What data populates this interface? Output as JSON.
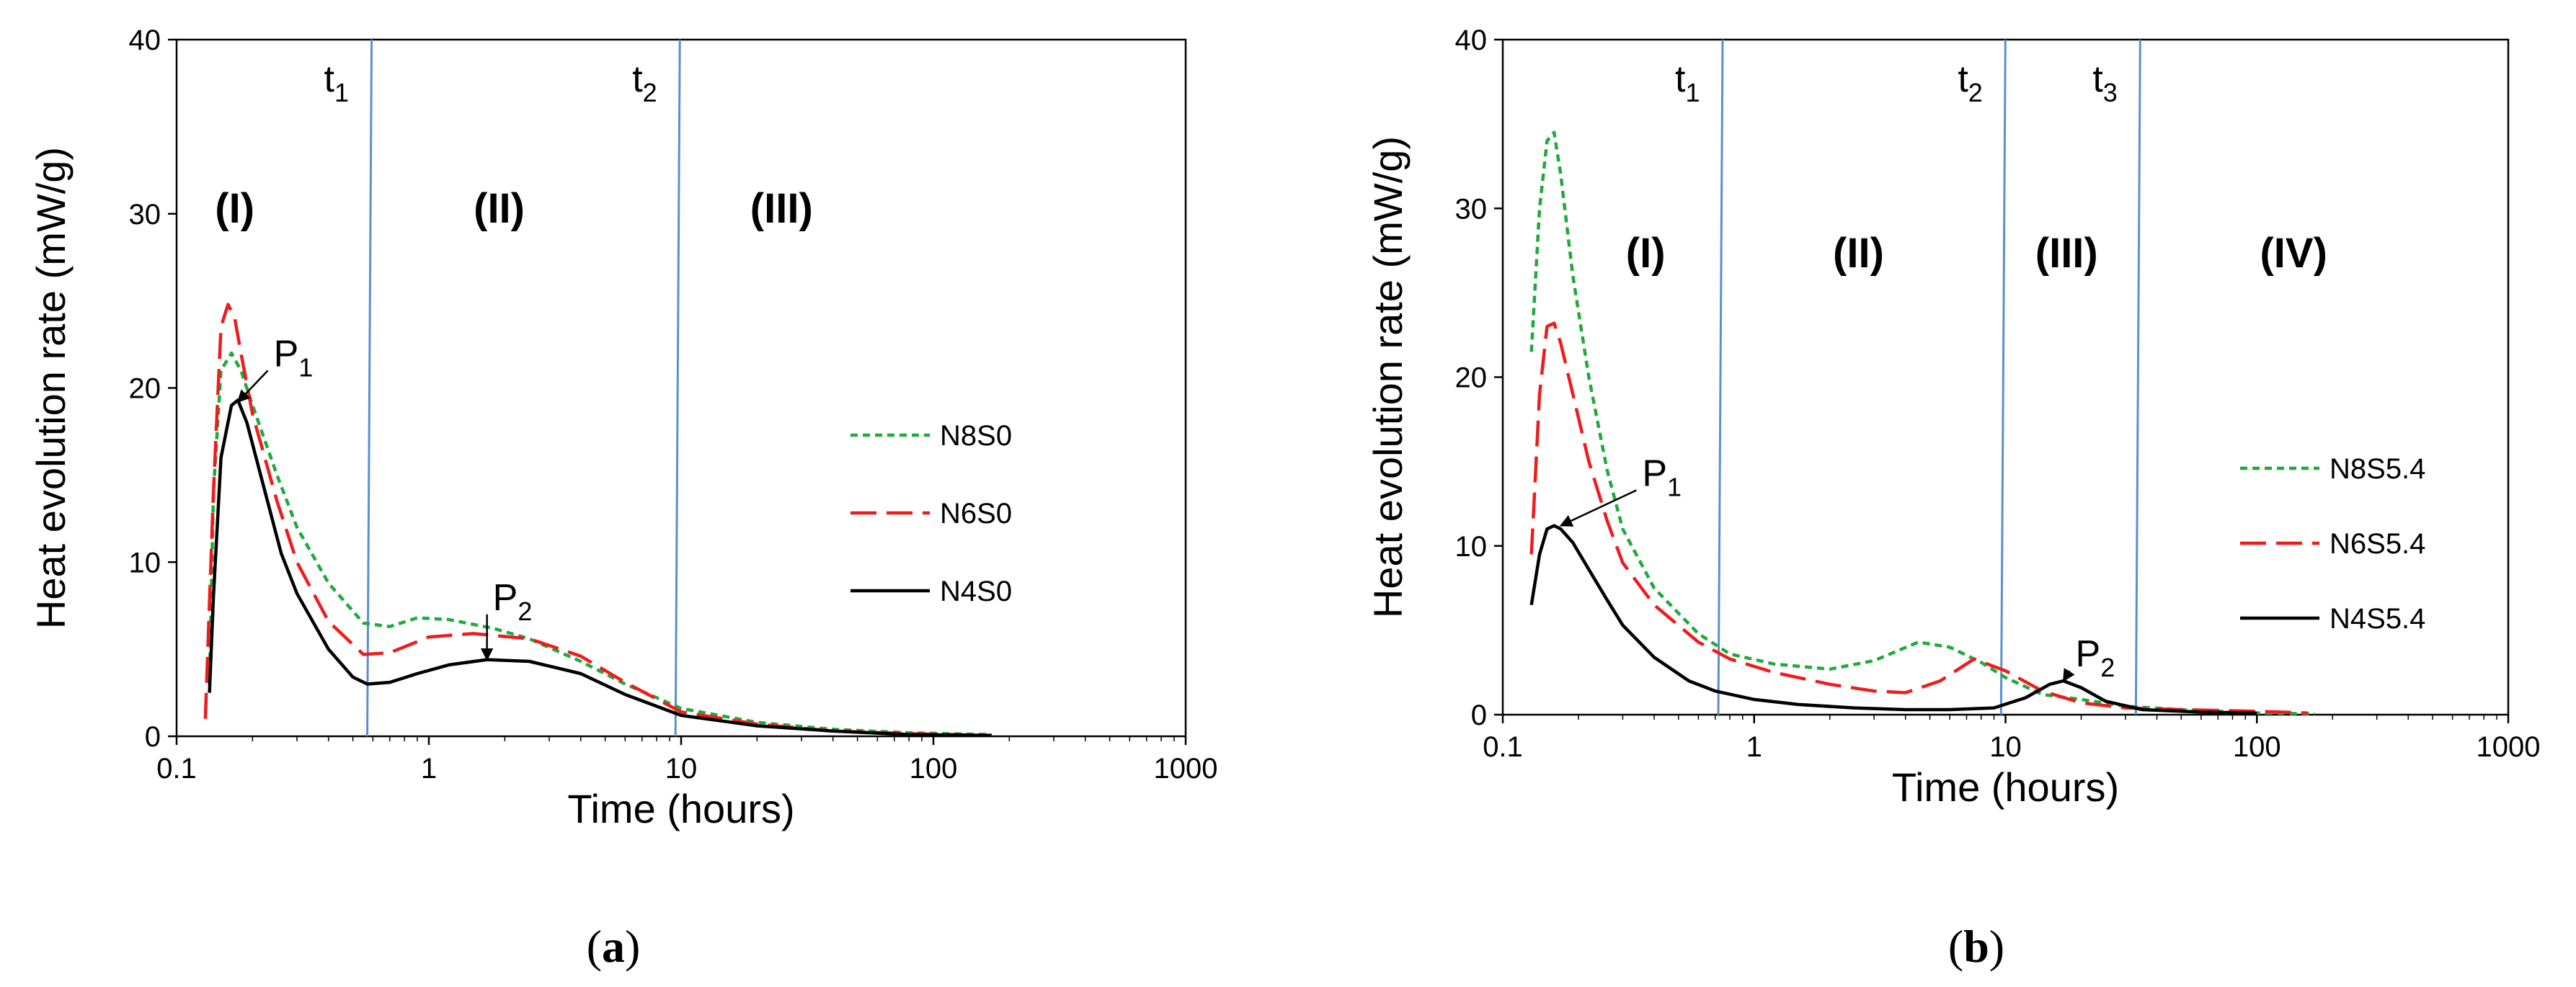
{
  "chart_data": [
    {
      "type": "line",
      "panel": "(a)",
      "caption_letter": "a",
      "xlabel": "Time (hours)",
      "ylabel": "Heat evolution rate (mW/g)",
      "xscale": "log",
      "xlim": [
        0.1,
        1000
      ],
      "ylim": [
        0,
        40
      ],
      "xticks": [
        0.1,
        1,
        10,
        100,
        1000
      ],
      "xtick_labels": [
        "0.1",
        "1",
        "10",
        "100",
        "1000"
      ],
      "yticks": [
        0,
        10,
        20,
        30,
        40
      ],
      "ytick_labels": [
        "0",
        "10",
        "20",
        "30",
        "40"
      ],
      "grid": false,
      "legend_position": "right",
      "boundaries": [
        {
          "label": "t",
          "sub": "1",
          "x": 0.57
        },
        {
          "label": "t",
          "sub": "2",
          "x": 9.5
        }
      ],
      "phases": [
        {
          "label": "(I)",
          "x": 0.17,
          "y": 29.5
        },
        {
          "label": "(II)",
          "x": 1.9,
          "y": 29.5
        },
        {
          "label": "(III)",
          "x": 25,
          "y": 29.5
        }
      ],
      "peaks": [
        {
          "label": "P",
          "sub": "1",
          "tip_x": 0.175,
          "tip_y": 19.2,
          "label_x": 0.23,
          "label_y": 21.0
        },
        {
          "label": "P",
          "sub": "2",
          "tip_x": 1.7,
          "tip_y": 4.4,
          "label_x": 1.7,
          "label_y": 7.0
        }
      ],
      "series": [
        {
          "name": "N8S0",
          "color": "#1faa3c",
          "dash": "10 7",
          "x": [
            0.135,
            0.14,
            0.15,
            0.165,
            0.18,
            0.2,
            0.25,
            0.3,
            0.4,
            0.55,
            0.7,
            0.9,
            1.2,
            1.8,
            2.5,
            4,
            6,
            10,
            20,
            40,
            80,
            170
          ],
          "y": [
            3.0,
            14.0,
            21.0,
            22.0,
            21.0,
            19.0,
            15.0,
            12.0,
            8.8,
            6.5,
            6.3,
            6.8,
            6.7,
            6.2,
            5.6,
            4.3,
            3.0,
            1.6,
            0.8,
            0.4,
            0.2,
            0.1
          ]
        },
        {
          "name": "N6S0",
          "color": "#ee1c1c",
          "dash": "36 14",
          "x": [
            0.13,
            0.14,
            0.15,
            0.16,
            0.17,
            0.18,
            0.2,
            0.25,
            0.3,
            0.4,
            0.55,
            0.7,
            1.0,
            1.5,
            2.5,
            4,
            6,
            10,
            20,
            40,
            80,
            170
          ],
          "y": [
            1.0,
            14.0,
            23.5,
            24.8,
            24.0,
            22.0,
            18.5,
            13.5,
            10.0,
            6.6,
            4.7,
            4.8,
            5.7,
            5.9,
            5.6,
            4.6,
            3.1,
            1.4,
            0.7,
            0.3,
            0.15,
            0.05
          ]
        },
        {
          "name": "N4S0",
          "color": "#000000",
          "dash": "",
          "x": [
            0.135,
            0.14,
            0.15,
            0.165,
            0.175,
            0.19,
            0.22,
            0.26,
            0.3,
            0.4,
            0.5,
            0.57,
            0.7,
            0.9,
            1.2,
            1.7,
            2.5,
            4,
            6,
            10,
            20,
            40,
            80,
            170
          ],
          "y": [
            2.5,
            8.0,
            16.0,
            19.0,
            19.3,
            18.0,
            14.5,
            10.5,
            8.2,
            5.0,
            3.4,
            3.0,
            3.1,
            3.6,
            4.1,
            4.4,
            4.3,
            3.6,
            2.4,
            1.2,
            0.6,
            0.3,
            0.1,
            0.05
          ]
        }
      ]
    },
    {
      "type": "line",
      "panel": "(b)",
      "caption_letter": "b",
      "xlabel": "Time (hours)",
      "ylabel": "Heat evolution rate (mW/g)",
      "xscale": "log",
      "xlim": [
        0.1,
        1000
      ],
      "ylim": [
        0,
        40
      ],
      "xticks": [
        0.1,
        1,
        10,
        100,
        1000
      ],
      "xtick_labels": [
        "0.1",
        "1",
        "10",
        "100",
        "1000"
      ],
      "yticks": [
        0,
        10,
        20,
        30,
        40
      ],
      "ytick_labels": [
        "0",
        "10",
        "20",
        "30",
        "40"
      ],
      "grid": false,
      "legend_position": "right",
      "boundaries": [
        {
          "label": "t",
          "sub": "1",
          "x": 0.72
        },
        {
          "label": "t",
          "sub": "2",
          "x": 9.6
        },
        {
          "label": "t",
          "sub": "3",
          "x": 33
        }
      ],
      "phases": [
        {
          "label": "(I)",
          "x": 0.37,
          "y": 26.5
        },
        {
          "label": "(II)",
          "x": 2.6,
          "y": 26.5
        },
        {
          "label": "(III)",
          "x": 17.5,
          "y": 26.5
        },
        {
          "label": "(IV)",
          "x": 140,
          "y": 26.5
        }
      ],
      "peaks": [
        {
          "label": "P",
          "sub": "1",
          "tip_x": 0.17,
          "tip_y": 11.2,
          "label_x": 0.34,
          "label_y": 13.3
        },
        {
          "label": "P",
          "sub": "2",
          "tip_x": 17,
          "tip_y": 2.0,
          "label_x": 18,
          "label_y": 2.6
        }
      ],
      "series": [
        {
          "name": "N8S5.4",
          "color": "#1faa3c",
          "dash": "10 7",
          "x": [
            0.13,
            0.14,
            0.15,
            0.16,
            0.17,
            0.19,
            0.22,
            0.26,
            0.3,
            0.4,
            0.6,
            0.8,
            1.2,
            2,
            3,
            4.5,
            6,
            8,
            10,
            14,
            20,
            30,
            50,
            100,
            170
          ],
          "y": [
            21.5,
            30.0,
            34.0,
            34.5,
            32.0,
            26.0,
            20.0,
            14.5,
            11.0,
            7.5,
            4.8,
            3.6,
            3.0,
            2.7,
            3.2,
            4.3,
            4.0,
            3.1,
            2.2,
            1.2,
            0.9,
            0.5,
            0.3,
            0.1,
            0.05
          ]
        },
        {
          "name": "N6S5.4",
          "color": "#ee1c1c",
          "dash": "36 14",
          "x": [
            0.13,
            0.14,
            0.15,
            0.16,
            0.17,
            0.19,
            0.22,
            0.26,
            0.3,
            0.4,
            0.6,
            0.8,
            1.2,
            2,
            3,
            4,
            5.5,
            7.5,
            10,
            14,
            20,
            30,
            50,
            100,
            160
          ],
          "y": [
            9.5,
            19.0,
            23.0,
            23.2,
            22.0,
            19.0,
            15.0,
            11.5,
            9.0,
            6.5,
            4.3,
            3.3,
            2.5,
            1.8,
            1.4,
            1.3,
            2.0,
            3.3,
            2.6,
            1.4,
            0.7,
            0.4,
            0.3,
            0.2,
            0.1
          ]
        },
        {
          "name": "N4S5.4",
          "color": "#000000",
          "dash": "",
          "x": [
            0.13,
            0.14,
            0.15,
            0.16,
            0.17,
            0.19,
            0.22,
            0.26,
            0.3,
            0.4,
            0.55,
            0.7,
            1.0,
            1.5,
            2.5,
            4,
            6,
            9,
            12,
            15,
            17,
            20,
            25,
            35,
            60,
            100
          ],
          "y": [
            6.5,
            9.5,
            11.0,
            11.2,
            11.0,
            10.2,
            8.6,
            6.8,
            5.3,
            3.4,
            2.0,
            1.4,
            0.9,
            0.6,
            0.4,
            0.3,
            0.3,
            0.4,
            1.0,
            1.8,
            2.0,
            1.6,
            0.8,
            0.3,
            0.15,
            0.1
          ]
        }
      ]
    }
  ]
}
